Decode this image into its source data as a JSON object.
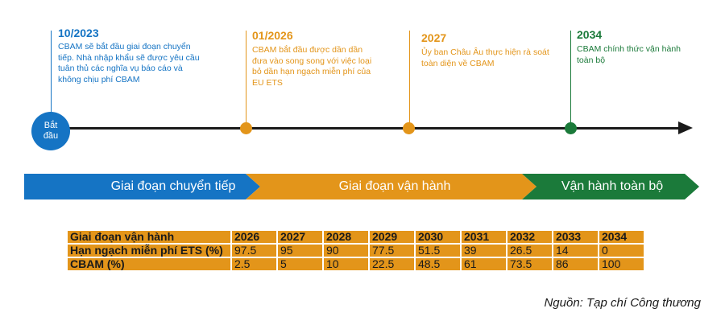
{
  "milestones": [
    {
      "year": "10/2023",
      "desc": "CBAM sẽ bắt đầu giai đoạn chuyển tiếp. Nhà nhập khẩu sẽ được yêu cầu tuân thủ các nghĩa vụ báo cáo và không chịu phí CBAM",
      "color": "#1574c4"
    },
    {
      "year": "01/2026",
      "desc": "CBAM bắt đầu được dần dần đưa vào song song với việc loại bỏ dần hạn ngạch miễn phí của EU ETS",
      "color": "#e3951a"
    },
    {
      "year": "2027",
      "desc": "Ủy ban Châu Âu thực hiện rà soát toàn diện về CBAM",
      "color": "#e3951a"
    },
    {
      "year": "2034",
      "desc": "CBAM chính thức vận hành toàn bộ",
      "color": "#1b7a3a"
    }
  ],
  "start_label": "Bắt đầu",
  "phases": [
    {
      "label": "Giai đoạn chuyển tiếp",
      "color": "#1574c4"
    },
    {
      "label": "Giai đoạn vận hành",
      "color": "#e3951a"
    },
    {
      "label": "Vận hành toàn bộ",
      "color": "#1b7a3a"
    }
  ],
  "table": {
    "header": "Giai đoạn vận hành",
    "years": [
      "2026",
      "2027",
      "2028",
      "2029",
      "2030",
      "2031",
      "2032",
      "2033",
      "2034"
    ],
    "rows": [
      {
        "label": "Hạn ngạch miễn phí ETS (%)",
        "values": [
          "97.5",
          "95",
          "90",
          "77.5",
          "51.5",
          "39",
          "26.5",
          "14",
          "0"
        ]
      },
      {
        "label": "CBAM (%)",
        "values": [
          "2.5",
          "5",
          "10",
          "22.5",
          "48.5",
          "61",
          "73.5",
          "86",
          "100"
        ]
      }
    ]
  },
  "source": "Nguồn: Tạp chí Công thương"
}
